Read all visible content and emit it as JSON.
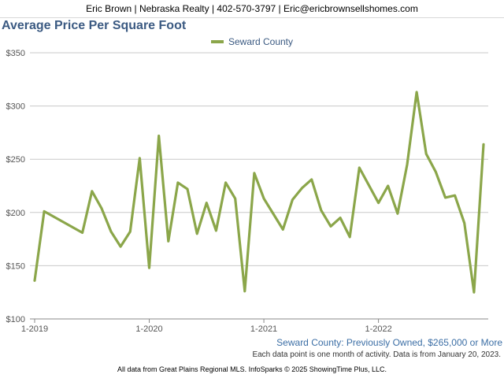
{
  "header": {
    "contact": "Eric Brown | Nebraska Realty | 402-570-3797 | Eric@ericbrownsellshomes.com"
  },
  "chart_data": {
    "type": "line",
    "title": "Average Price Per Square Foot",
    "series": [
      {
        "name": "Seward County",
        "color": "#8ba64a",
        "values": [
          136,
          201,
          181,
          220,
          204,
          182,
          168,
          182,
          251,
          148,
          272,
          173,
          228,
          222,
          180,
          209,
          183,
          228,
          213,
          126,
          237,
          213,
          184,
          212,
          223,
          231,
          202,
          187,
          195,
          177,
          242,
          209,
          225,
          199,
          245,
          313,
          255,
          238,
          214,
          216,
          190,
          125,
          264
        ]
      }
    ],
    "x_index": [
      0,
      1,
      5,
      6,
      7,
      8,
      9,
      10,
      11,
      12,
      13,
      14,
      15,
      16,
      17,
      18,
      19,
      20,
      21,
      22,
      23,
      24,
      26,
      27,
      28,
      29,
      30,
      31,
      32,
      33,
      34,
      36,
      37,
      38,
      39,
      40,
      41,
      42,
      43,
      44,
      45,
      46,
      47
    ],
    "x_start": "1-2019",
    "x_tick_labels": [
      "1-2019",
      "1-2020",
      "1-2021",
      "1-2022"
    ],
    "y_tick_labels": [
      "$100",
      "$150",
      "$200",
      "$250",
      "$300",
      "$350"
    ],
    "ylim": [
      100,
      350
    ],
    "grid": true,
    "legend": "top-center",
    "subtitle": "Seward County: Previously Owned, $265,000 or More",
    "note": "Each data point is one month of activity. Data is from January 20, 2023."
  },
  "footer": {
    "text": "All data from Great Plains Regional MLS. InfoSparks © 2025 ShowingTime Plus, LLC."
  }
}
